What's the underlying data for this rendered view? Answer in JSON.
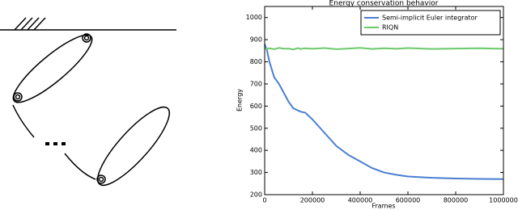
{
  "chart_data": {
    "type": "line",
    "title": "Energy conservation behavior",
    "x_label": "Frames",
    "y_label": "Energy",
    "x": [
      0,
      10000,
      20000,
      40000,
      60000,
      80000,
      100000,
      120000,
      140000,
      150000,
      170000,
      200000,
      250000,
      300000,
      350000,
      400000,
      450000,
      500000,
      550000,
      600000,
      700000,
      800000,
      900000,
      1000000
    ],
    "series": [
      {
        "name": "Semi-implicit Euler integrator",
        "color": "#4a7fd0",
        "values": [
          880,
          850,
          800,
          730,
          700,
          660,
          620,
          590,
          580,
          575,
          570,
          540,
          480,
          420,
          380,
          350,
          320,
          300,
          290,
          282,
          276,
          273,
          271,
          270
        ]
      },
      {
        "name": "RIQN",
        "color": "#6cc96c",
        "values": [
          862,
          858,
          861,
          857,
          863,
          859,
          860,
          856,
          862,
          858,
          861,
          859,
          862,
          857,
          860,
          863,
          858,
          861,
          859,
          862,
          858,
          860,
          861,
          859
        ]
      }
    ],
    "xlim": [
      0,
      1000000
    ],
    "xticks": [
      0,
      200000,
      400000,
      600000,
      800000,
      1000000
    ],
    "ylim": [
      200,
      1050
    ],
    "yticks": [
      200,
      300,
      400,
      500,
      600,
      700,
      800,
      900,
      1000
    ],
    "legend": "upper right"
  }
}
